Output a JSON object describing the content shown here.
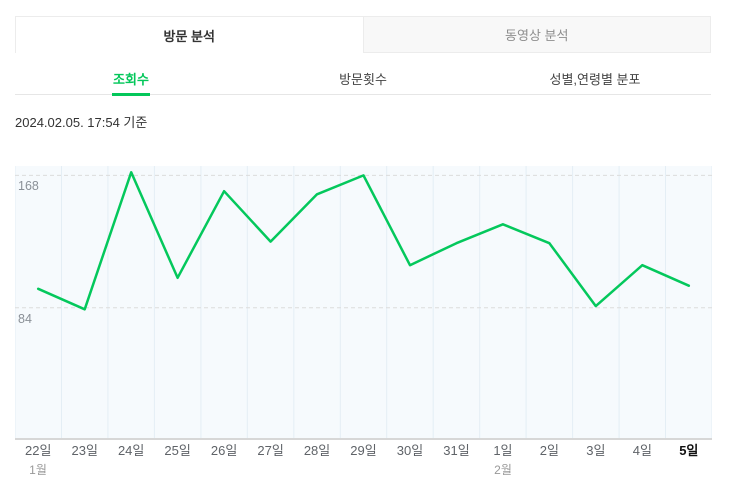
{
  "tabs": [
    {
      "label": "방문 분석",
      "active": true
    },
    {
      "label": "동영상 분석",
      "active": false
    }
  ],
  "subtabs": [
    {
      "label": "조회수",
      "active": true
    },
    {
      "label": "방문횟수",
      "active": false
    },
    {
      "label": "성별,연령별 분포",
      "active": false
    }
  ],
  "timestamp": "2024.02.05. 17:54 기준",
  "colors": {
    "accent_green": "#03c75a",
    "line_green": "#04c85c",
    "plot_bg": "#f6fafd",
    "vertical_grid": "#e4eef5",
    "dashed_grid": "#dcdcdc",
    "axis_line": "#d7d7d7"
  },
  "chart_data": {
    "type": "line",
    "categories": [
      "22일",
      "23일",
      "24일",
      "25일",
      "26일",
      "27일",
      "28일",
      "29일",
      "30일",
      "31일",
      "1일",
      "2일",
      "3일",
      "4일",
      "5일"
    ],
    "values": [
      96,
      83,
      170,
      103,
      158,
      126,
      156,
      168,
      111,
      125,
      137,
      125,
      85,
      111,
      98
    ],
    "ylim": [
      0,
      174
    ],
    "ygridlines": [
      {
        "value": 168,
        "label": "168"
      },
      {
        "value": 84,
        "label": "84"
      }
    ],
    "month_markers": [
      {
        "index": 0,
        "label": "1월"
      },
      {
        "index": 10,
        "label": "2월"
      }
    ],
    "emphasized_category_index": 14,
    "grid": "vertical column lines + dashed horizontal value lines",
    "legend": "none",
    "title": "",
    "xlabel": "",
    "ylabel": ""
  }
}
